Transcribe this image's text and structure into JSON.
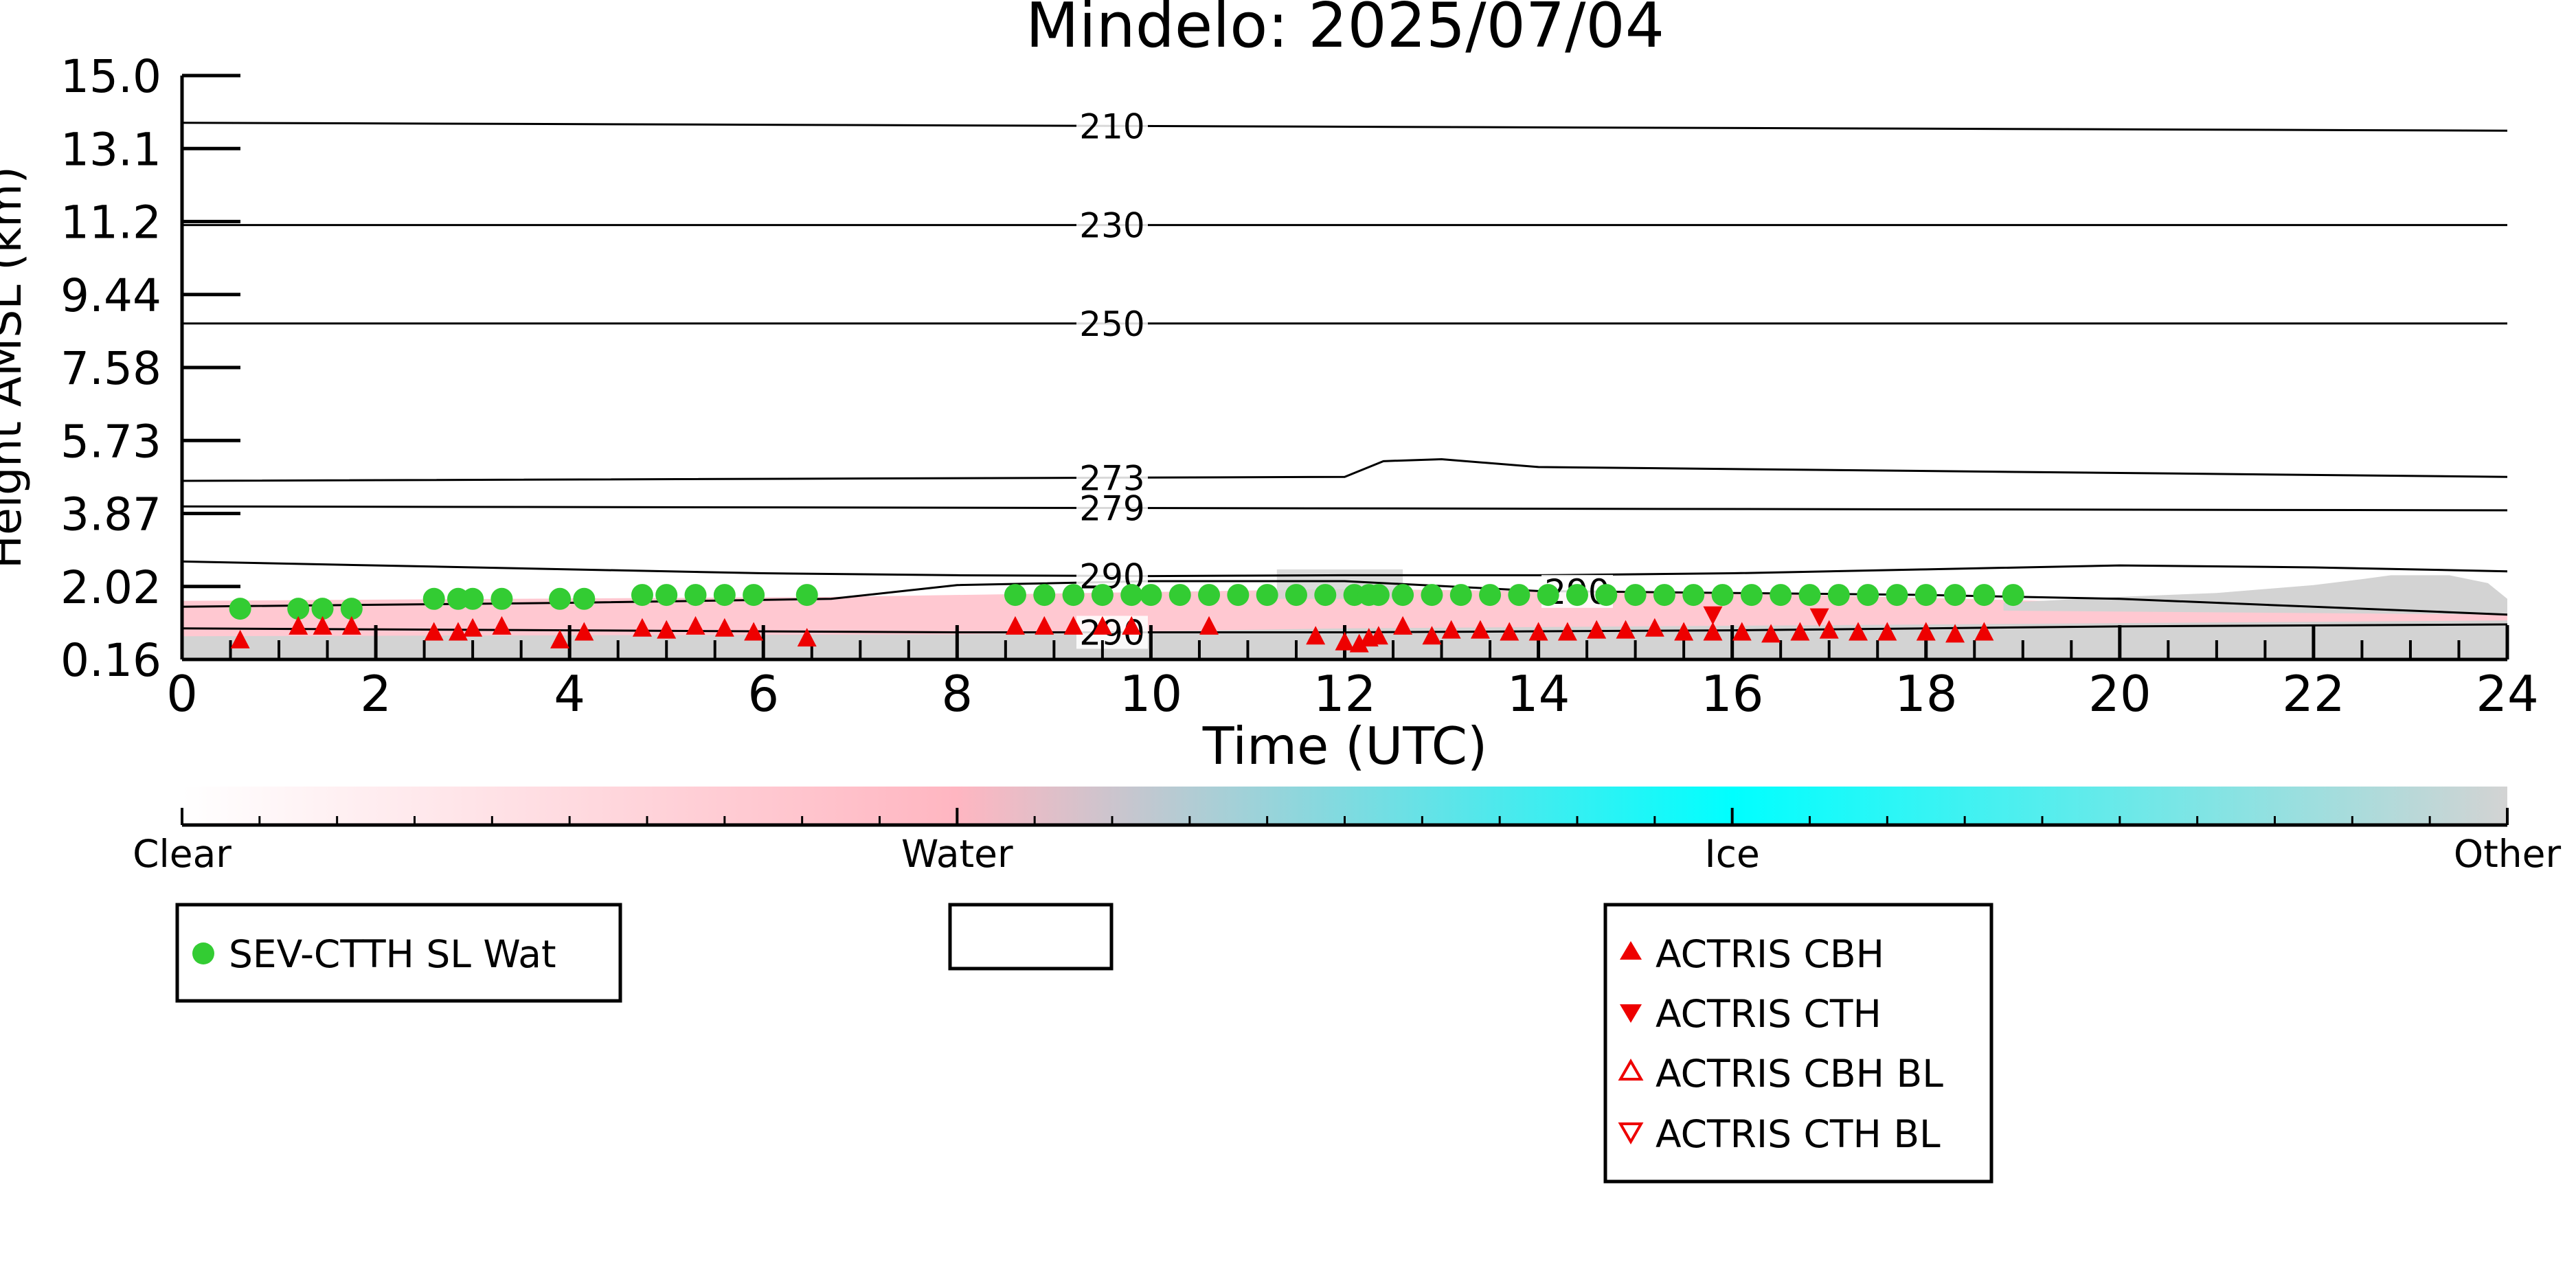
{
  "chart_data": {
    "type": "scatter",
    "title": "Mindelo: 2025/07/04",
    "xlabel": "Time (UTC)",
    "ylabel": "Height AMSL (km)",
    "xlim": [
      0,
      24
    ],
    "ylim": [
      0.16,
      15.0
    ],
    "x_ticks": [
      "0",
      "2",
      "4",
      "6",
      "8",
      "10",
      "12",
      "14",
      "16",
      "18",
      "20",
      "22",
      "24"
    ],
    "y_ticks": [
      "15.0",
      "13.1",
      "11.2",
      "9.44",
      "7.58",
      "5.73",
      "3.87",
      "2.02",
      "0.16"
    ],
    "grid": false,
    "contours": [
      {
        "label": "210",
        "x": [
          0,
          24
        ],
        "y": [
          13.8,
          13.6
        ]
      },
      {
        "label": "230",
        "x": [
          0,
          24
        ],
        "y": [
          11.2,
          11.2
        ]
      },
      {
        "label": "250",
        "x": [
          0,
          24
        ],
        "y": [
          8.7,
          8.7
        ]
      },
      {
        "label": "273",
        "x": [
          0,
          12,
          12.4,
          13,
          14,
          24
        ],
        "y": [
          4.7,
          4.8,
          5.2,
          5.25,
          5.05,
          4.8
        ]
      },
      {
        "label": "279",
        "x": [
          0,
          24
        ],
        "y": [
          4.05,
          3.95
        ]
      },
      {
        "label": "290",
        "x": [
          0,
          2,
          4,
          6,
          8,
          10,
          12,
          14,
          16,
          18,
          20,
          22,
          24
        ],
        "y": [
          2.65,
          2.55,
          2.45,
          2.35,
          2.3,
          2.28,
          2.3,
          2.3,
          2.35,
          2.45,
          2.55,
          2.5,
          2.4
        ]
      },
      {
        "label": "290",
        "x": [
          0,
          4,
          6.7,
          8,
          10,
          12,
          14,
          16,
          18,
          20,
          22,
          24
        ],
        "y": [
          1.5,
          1.6,
          1.7,
          2.05,
          2.15,
          2.15,
          1.9,
          1.85,
          1.8,
          1.7,
          1.5,
          1.3
        ]
      },
      {
        "label": "290",
        "x": [
          0,
          4,
          8,
          12,
          16,
          20,
          24
        ],
        "y": [
          0.95,
          0.9,
          0.85,
          0.85,
          0.9,
          1.0,
          1.05
        ]
      }
    ],
    "series": [
      {
        "name": "SEV-CTTH SL Wat",
        "x": [
          0.6,
          1.2,
          1.45,
          1.75,
          2.6,
          2.85,
          3.0,
          3.3,
          3.9,
          4.15,
          4.75,
          5.0,
          5.3,
          5.6,
          5.9,
          6.45,
          8.6,
          8.9,
          9.2,
          9.5,
          9.8,
          10.0,
          10.3,
          10.6,
          10.9,
          11.2,
          11.5,
          11.8,
          12.1,
          12.25,
          12.35,
          12.6,
          12.9,
          13.2,
          13.5,
          13.8,
          14.1,
          14.4,
          14.7,
          15.0,
          15.3,
          15.6,
          15.9,
          16.2,
          16.5,
          16.8,
          17.1,
          17.4,
          17.7,
          18.0,
          18.3,
          18.6,
          18.9
        ],
        "y": [
          1.45,
          1.45,
          1.45,
          1.45,
          1.7,
          1.7,
          1.7,
          1.7,
          1.7,
          1.7,
          1.8,
          1.8,
          1.8,
          1.8,
          1.8,
          1.8,
          1.8,
          1.8,
          1.8,
          1.8,
          1.8,
          1.8,
          1.8,
          1.8,
          1.8,
          1.8,
          1.8,
          1.8,
          1.8,
          1.8,
          1.8,
          1.8,
          1.8,
          1.8,
          1.8,
          1.8,
          1.8,
          1.8,
          1.8,
          1.8,
          1.8,
          1.8,
          1.8,
          1.8,
          1.8,
          1.8,
          1.8,
          1.8,
          1.8,
          1.8,
          1.8,
          1.8,
          1.8
        ]
      },
      {
        "name": "ACTRIS CBH",
        "x": [
          0.6,
          1.2,
          1.45,
          1.75,
          2.6,
          2.85,
          3.0,
          3.3,
          3.9,
          4.15,
          4.75,
          5.0,
          5.3,
          5.6,
          5.9,
          6.45,
          8.6,
          8.9,
          9.2,
          9.5,
          9.8,
          10.6,
          11.7,
          12.0,
          12.15,
          12.25,
          12.35,
          12.6,
          12.9,
          13.1,
          13.4,
          13.7,
          14.0,
          14.3,
          14.6,
          14.9,
          15.2,
          15.5,
          15.8,
          16.1,
          16.4,
          16.7,
          17.0,
          17.3,
          17.6,
          18.0,
          18.3,
          18.6
        ],
        "y": [
          0.65,
          1.0,
          1.0,
          1.0,
          0.85,
          0.85,
          0.95,
          1.0,
          0.65,
          0.85,
          0.95,
          0.9,
          1.0,
          0.95,
          0.85,
          0.7,
          1.0,
          1.0,
          1.0,
          1.0,
          1.0,
          1.0,
          0.75,
          0.6,
          0.55,
          0.7,
          0.75,
          1.0,
          0.75,
          0.9,
          0.9,
          0.85,
          0.85,
          0.85,
          0.9,
          0.9,
          0.95,
          0.85,
          0.85,
          0.85,
          0.8,
          0.85,
          0.9,
          0.85,
          0.85,
          0.85,
          0.8,
          0.85
        ]
      },
      {
        "name": "ACTRIS CTH",
        "x": [
          15.8,
          16.9
        ],
        "y": [
          1.3,
          1.25
        ]
      },
      {
        "name": "ACTRIS CBH BL",
        "x": [],
        "y": []
      },
      {
        "name": "ACTRIS CTH BL",
        "x": [],
        "y": []
      }
    ],
    "colorbar": {
      "labels": [
        "Clear",
        "Water",
        "Ice",
        "Other"
      ],
      "colors": [
        "#ffffff",
        "#ffb6c1",
        "#00ffff",
        "#d3d3d3"
      ]
    },
    "colors": {
      "sev": "#33cc33",
      "actris": "#ee0000",
      "water_fill": "#ffb6c1",
      "other_fill": "#d3d3d3",
      "contour": "#000000"
    }
  },
  "legends": {
    "left": [
      "SEV-CTTH SL Wat"
    ],
    "right": [
      "ACTRIS CBH",
      "ACTRIS CTH",
      "ACTRIS CBH BL",
      "ACTRIS CTH BL"
    ]
  }
}
